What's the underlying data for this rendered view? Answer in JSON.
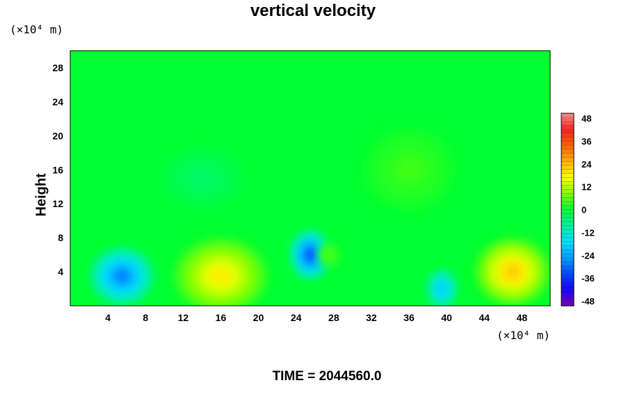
{
  "chart_data": {
    "type": "heatmap",
    "title": "vertical velocity",
    "ylabel": "Height",
    "y_unit_label": "(×10⁴ m)",
    "x_unit_label": "(×10⁴ m)",
    "footer": "TIME = 2044560.0",
    "xlim": [
      0,
      51
    ],
    "ylim": [
      0,
      30
    ],
    "x_ticks": [
      4,
      8,
      12,
      16,
      20,
      24,
      28,
      32,
      36,
      40,
      44,
      48
    ],
    "y_ticks": [
      4,
      8,
      12,
      16,
      20,
      24,
      28
    ],
    "colorbar": {
      "range": [
        -48,
        48
      ],
      "ticks": [
        48,
        36,
        24,
        12,
        0,
        -12,
        -24,
        -36,
        -48
      ]
    },
    "features": [
      {
        "x": 5.5,
        "y": 3.5,
        "value": -28,
        "rx": 3.5,
        "ry": 3.5
      },
      {
        "x": 25.5,
        "y": 6.0,
        "value": -34,
        "rx": 2.2,
        "ry": 3.0
      },
      {
        "x": 39.5,
        "y": 2.0,
        "value": -20,
        "rx": 1.8,
        "ry": 2.5
      },
      {
        "x": 16.0,
        "y": 3.5,
        "value": 18,
        "rx": 5.0,
        "ry": 4.5
      },
      {
        "x": 47.0,
        "y": 4.0,
        "value": 22,
        "rx": 4.0,
        "ry": 4.0
      },
      {
        "x": 27.5,
        "y": 6.0,
        "value": 6,
        "rx": 1.2,
        "ry": 1.5
      },
      {
        "x": 36.0,
        "y": 16.0,
        "value": 4,
        "rx": 5.0,
        "ry": 5.0
      },
      {
        "x": 14.0,
        "y": 15.0,
        "value": -4,
        "rx": 5.0,
        "ry": 4.0
      }
    ],
    "grid": false
  }
}
